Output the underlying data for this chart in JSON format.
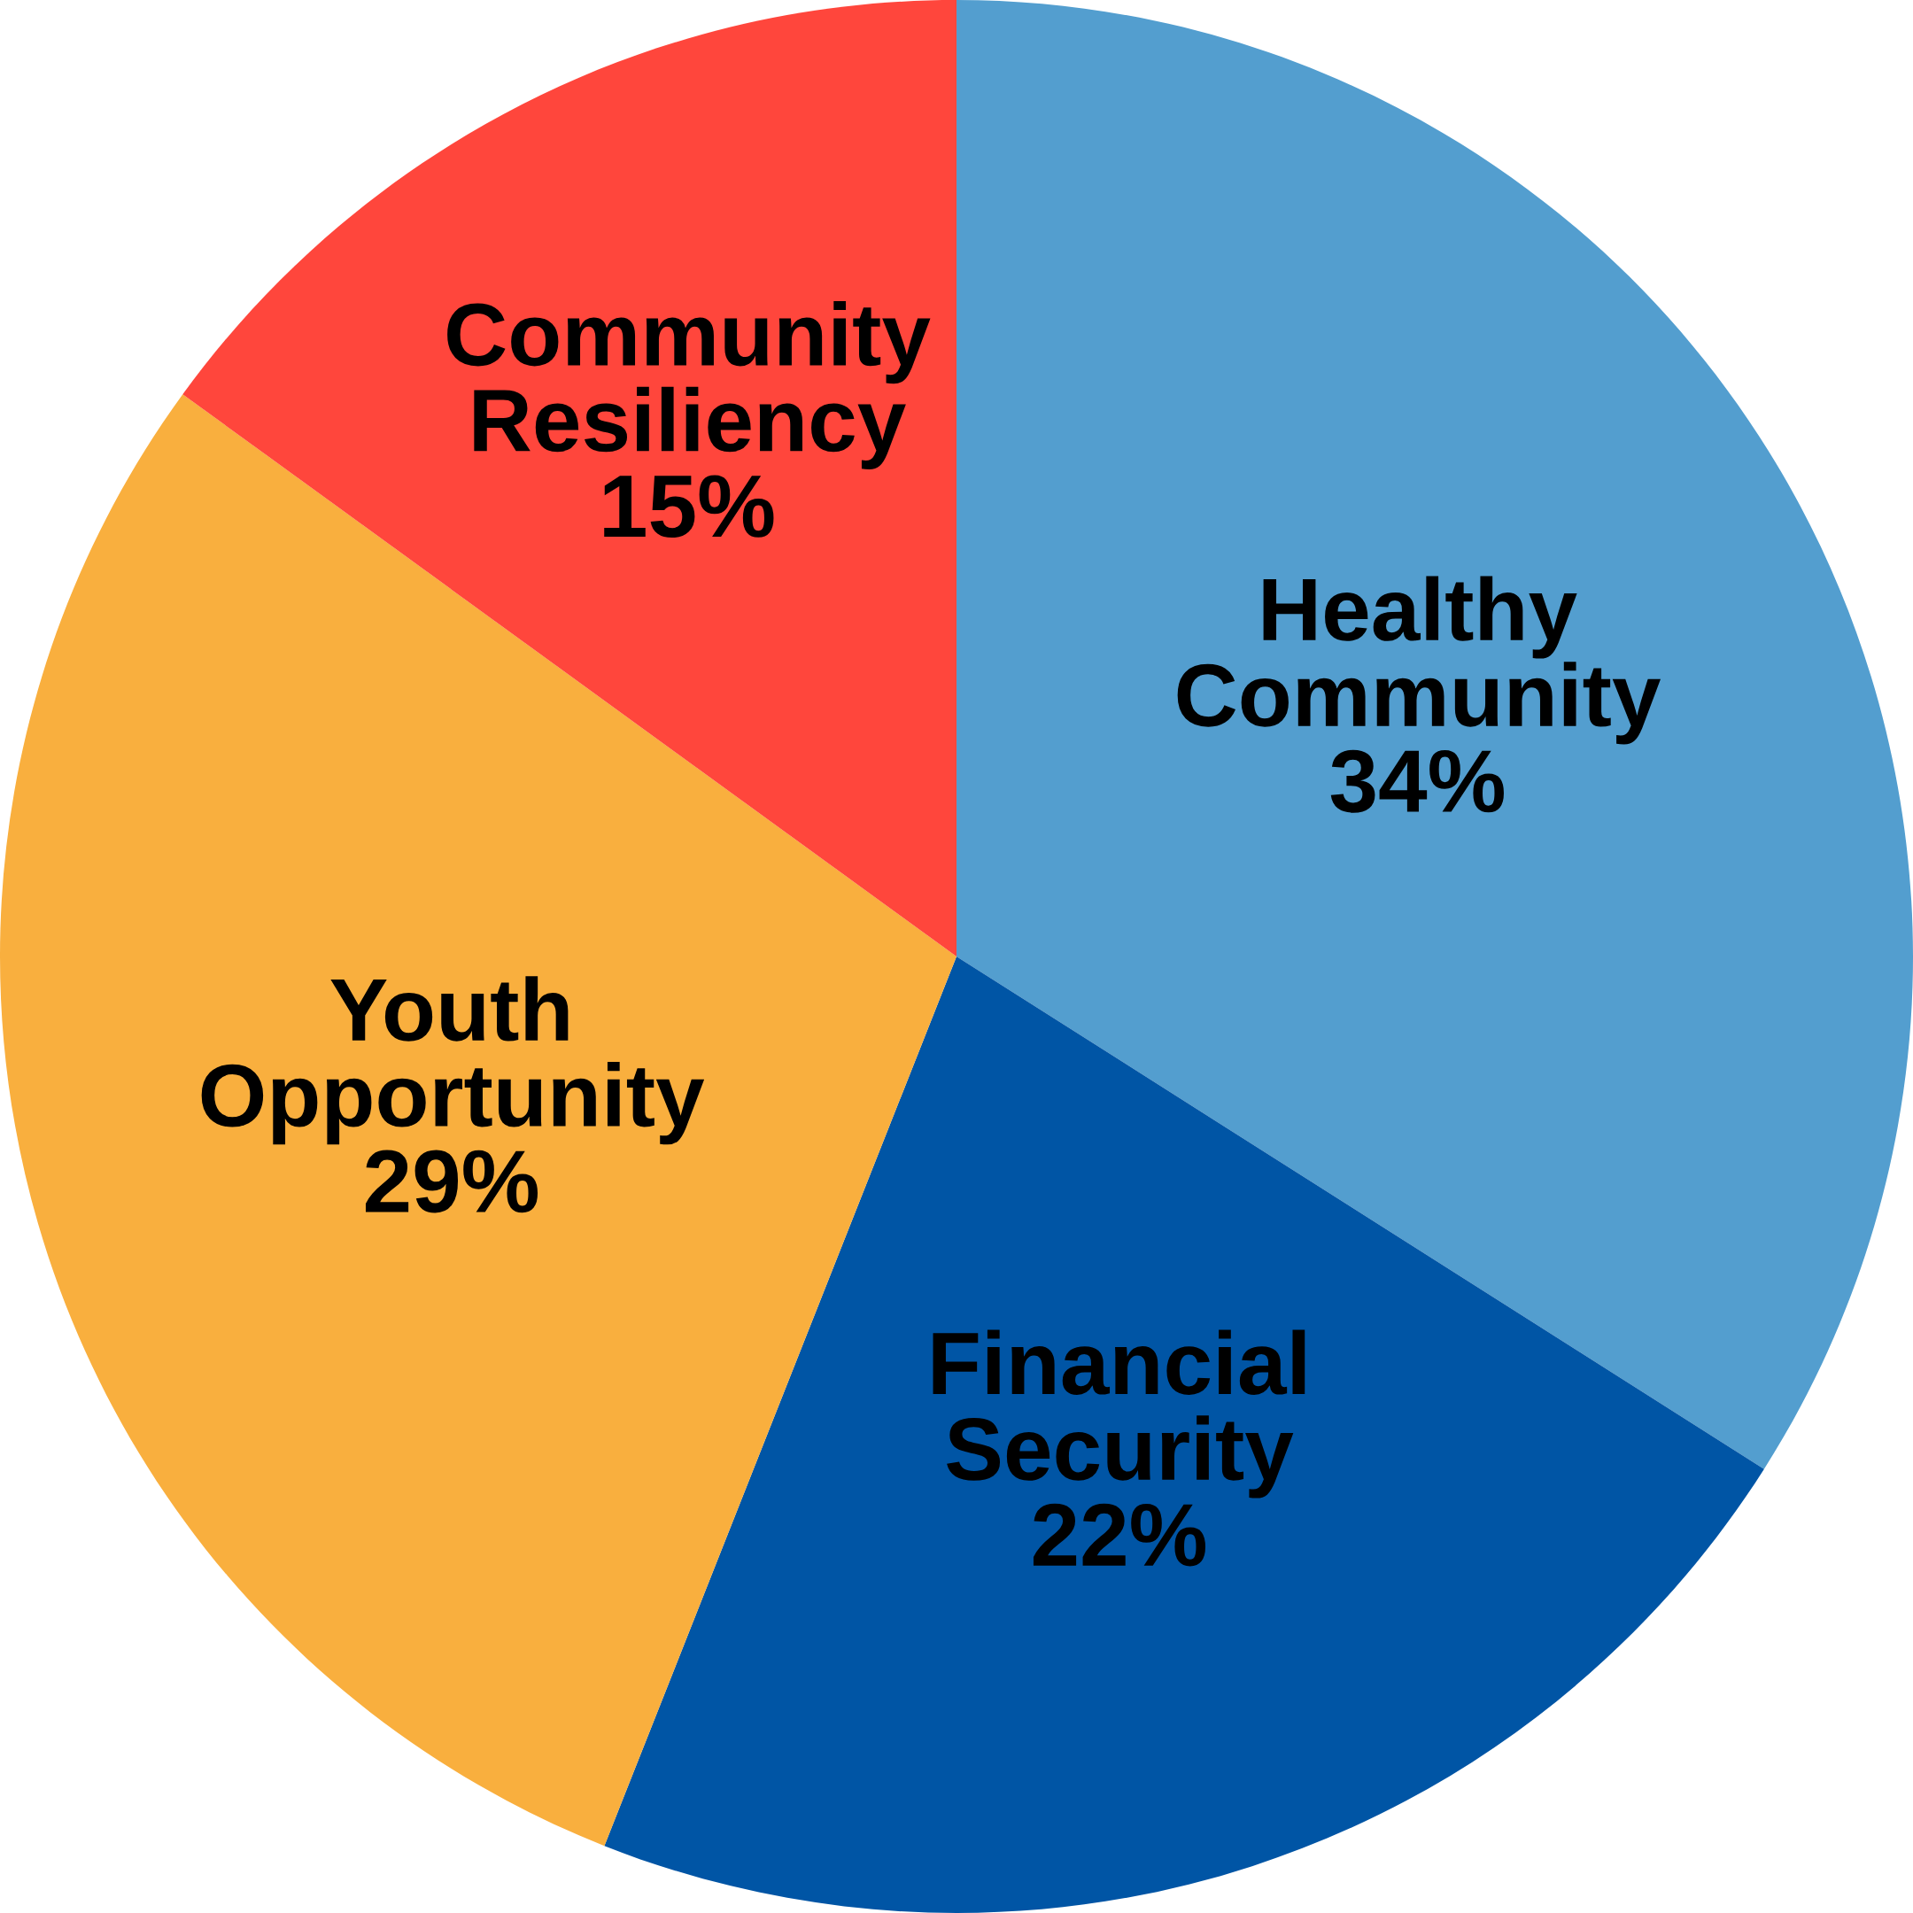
{
  "chart_data": {
    "type": "pie",
    "categories": [
      "Healthy Community",
      "Financial Security",
      "Youth Opportunity",
      "Community Resiliency"
    ],
    "values": [
      34,
      22,
      29,
      15
    ],
    "colors": [
      "#539ecf",
      "#0055a5",
      "#f9af3e",
      "#ff463c"
    ],
    "value_labels": [
      "34%",
      "22%",
      "29%",
      "15%"
    ]
  }
}
